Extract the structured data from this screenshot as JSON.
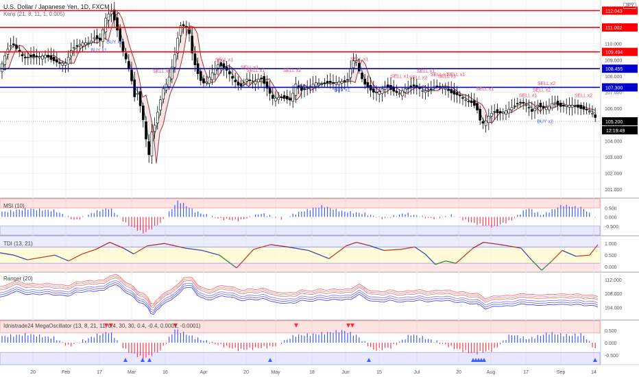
{
  "header": {
    "symbol": "U.S. Dollar / Japanese Yen, 1D, FXCM",
    "study": "Kenji (21, 8, 11, 1, 0.005)",
    "currency": "JPY"
  },
  "indicators": [
    {
      "title": "MSI (10)"
    },
    {
      "title": "TDI (13, 21)"
    },
    {
      "title": "Ranger (20)"
    },
    {
      "title": "Idnistrade24 MegaOscillator (13, 8, 21, 11, 0.4, 30, 30, 0.4, -0.4, 0.0001, -0.0001)"
    }
  ],
  "levels": [
    {
      "price": 112.043,
      "label": "112.043",
      "color": "#ff0000"
    },
    {
      "price": 111.002,
      "label": "111.002",
      "color": "#ff0000"
    },
    {
      "price": 109.494,
      "label": "109.494",
      "color": "#ff0000"
    },
    {
      "price": 108.455,
      "label": "108.455",
      "color": "#0000cc"
    },
    {
      "price": 107.3,
      "label": "107.300",
      "color": "#0000cc"
    }
  ],
  "last_price": {
    "price": 105.2,
    "label": "105.200",
    "time": "12:19:49"
  },
  "chart_data": [
    {
      "type": "candlestick",
      "title": "U.S. Dollar / Japanese Yen, 1D, FXCM",
      "ylim": [
        100.5,
        112.7
      ],
      "y_ticks": [
        "101.000",
        "102.000",
        "103.000",
        "104.000",
        "105.000",
        "106.000",
        "107.000",
        "108.000",
        "109.000",
        "110.000",
        "111.000",
        "112.000"
      ],
      "x_labels": [
        "20",
        "Feb",
        "17",
        "Mar",
        "16",
        "Apr",
        "20",
        "May",
        "18",
        "Jun",
        "15",
        "Jul",
        "20",
        "Aug",
        "17",
        "Sep",
        "14"
      ],
      "price_path": [
        [
          0,
          108.4
        ],
        [
          10,
          109.6
        ],
        [
          18,
          110.0
        ],
        [
          26,
          109.6
        ],
        [
          35,
          109.1
        ],
        [
          44,
          109.2
        ],
        [
          58,
          109.2
        ],
        [
          66,
          109.3
        ],
        [
          75,
          109.0
        ],
        [
          86,
          108.8
        ],
        [
          96,
          108.8
        ],
        [
          105,
          109.7
        ],
        [
          114,
          109.9
        ],
        [
          122,
          110.1
        ],
        [
          130,
          110.0
        ],
        [
          138,
          110.4
        ],
        [
          146,
          110.2
        ],
        [
          155,
          111.7
        ],
        [
          163,
          112.0
        ],
        [
          170,
          111.0
        ],
        [
          178,
          109.7
        ],
        [
          184,
          109.0
        ],
        [
          188,
          108.4
        ],
        [
          192,
          107.7
        ],
        [
          196,
          106.7
        ],
        [
          200,
          107.0
        ],
        [
          206,
          105.9
        ],
        [
          212,
          104.6
        ],
        [
          216,
          102.6
        ],
        [
          220,
          104.4
        ],
        [
          226,
          105.0
        ],
        [
          232,
          106.2
        ],
        [
          238,
          107.2
        ],
        [
          244,
          107.6
        ],
        [
          250,
          108.4
        ],
        [
          256,
          109.5
        ],
        [
          262,
          111.1
        ],
        [
          268,
          111.1
        ],
        [
          275,
          110.9
        ],
        [
          281,
          109.2
        ],
        [
          287,
          108.3
        ],
        [
          293,
          107.7
        ],
        [
          299,
          107.5
        ],
        [
          305,
          107.9
        ],
        [
          311,
          108.3
        ],
        [
          318,
          108.7
        ],
        [
          324,
          108.6
        ],
        [
          332,
          108.3
        ],
        [
          340,
          107.8
        ],
        [
          350,
          107.3
        ],
        [
          360,
          107.8
        ],
        [
          370,
          107.6
        ],
        [
          380,
          107.9
        ],
        [
          390,
          107.2
        ],
        [
          398,
          106.6
        ],
        [
          408,
          106.7
        ],
        [
          416,
          106.6
        ],
        [
          424,
          106.5
        ],
        [
          432,
          107.6
        ],
        [
          440,
          107.1
        ],
        [
          450,
          107.3
        ],
        [
          460,
          107.6
        ],
        [
          470,
          107.5
        ],
        [
          480,
          107.6
        ],
        [
          490,
          107.6
        ],
        [
          500,
          107.7
        ],
        [
          506,
          107.6
        ],
        [
          512,
          108.6
        ],
        [
          518,
          109.2
        ],
        [
          523,
          108.4
        ],
        [
          530,
          107.6
        ],
        [
          536,
          107.3
        ],
        [
          544,
          107.0
        ],
        [
          552,
          107.0
        ],
        [
          562,
          107.4
        ],
        [
          572,
          107.1
        ],
        [
          582,
          106.9
        ],
        [
          590,
          107.2
        ],
        [
          598,
          107.3
        ],
        [
          606,
          107.4
        ],
        [
          616,
          107.1
        ],
        [
          626,
          107.1
        ],
        [
          636,
          107.4
        ],
        [
          648,
          107.3
        ],
        [
          660,
          106.9
        ],
        [
          670,
          106.8
        ],
        [
          680,
          106.5
        ],
        [
          690,
          106.3
        ],
        [
          696,
          105.9
        ],
        [
          702,
          105.0
        ],
        [
          708,
          105.2
        ],
        [
          714,
          105.6
        ],
        [
          720,
          105.8
        ],
        [
          728,
          105.7
        ],
        [
          736,
          105.8
        ],
        [
          744,
          106.0
        ],
        [
          752,
          106.2
        ],
        [
          760,
          106.4
        ],
        [
          768,
          106.2
        ],
        [
          776,
          105.8
        ],
        [
          784,
          106.2
        ],
        [
          792,
          106.0
        ],
        [
          800,
          106.1
        ],
        [
          808,
          106.4
        ],
        [
          816,
          106.1
        ],
        [
          826,
          106.2
        ],
        [
          836,
          106.2
        ],
        [
          846,
          106.0
        ],
        [
          856,
          105.9
        ],
        [
          864,
          105.7
        ],
        [
          872,
          105.2
        ]
      ],
      "signals": [
        {
          "label": "BUY x1",
          "x": 167,
          "price": 110.0,
          "color": "#3d5cff"
        },
        {
          "label": "BUY x1",
          "x": 144,
          "price": 109.5,
          "color": "#3d5cff"
        },
        {
          "label": "SELL x1",
          "x": 236,
          "price": 108.2,
          "color": "#ff4060"
        },
        {
          "label": "SELL x1",
          "x": 327,
          "price": 108.9,
          "color": "#ff4060"
        },
        {
          "label": "SELL x1",
          "x": 364,
          "price": 108.45,
          "color": "#ff4060"
        },
        {
          "label": "SELL x1",
          "x": 373,
          "price": 108.25,
          "color": "#ff4060"
        },
        {
          "label": "SELL x2",
          "x": 426,
          "price": 108.25,
          "color": "#ff4060"
        },
        {
          "label": "BUY x1",
          "x": 499,
          "price": 107.05,
          "color": "#3d5cff"
        },
        {
          "label": "SELL x1",
          "x": 524,
          "price": 108.95,
          "color": "#ff4060"
        },
        {
          "label": "SELL x1",
          "x": 583,
          "price": 107.9,
          "color": "#ff4060"
        },
        {
          "label": "SELL x2",
          "x": 610,
          "price": 107.8,
          "color": "#ff4060"
        },
        {
          "label": "SELL x1",
          "x": 621,
          "price": 108.2,
          "color": "#ff4060"
        },
        {
          "label": "SELL x1",
          "x": 641,
          "price": 108.0,
          "color": "#ff4060"
        },
        {
          "label": "SELL x1",
          "x": 652,
          "price": 107.9,
          "color": "#ff4060"
        },
        {
          "label": "SELL x1",
          "x": 665,
          "price": 108.0,
          "color": "#ff4060"
        },
        {
          "label": "SELL x1",
          "x": 707,
          "price": 107.1,
          "color": "#ff4060"
        },
        {
          "label": "SELL x1",
          "x": 770,
          "price": 106.7,
          "color": "#ff4060"
        },
        {
          "label": "SELL x2",
          "x": 797,
          "price": 107.45,
          "color": "#ff4060"
        },
        {
          "label": "SELL x2",
          "x": 790,
          "price": 107.05,
          "color": "#ff4060"
        },
        {
          "label": "SELL x2",
          "x": 851,
          "price": 106.7,
          "color": "#ff4060"
        },
        {
          "label": "BUY x2",
          "x": 795,
          "price": 105.1,
          "color": "#3d5cff"
        }
      ]
    },
    {
      "type": "bar",
      "title": "MSI (10)",
      "ylim": [
        -1.0,
        1.0
      ],
      "y_ticks": [
        "0.500",
        "0.000",
        "-0.500"
      ],
      "profile": [
        [
          0,
          0.25
        ],
        [
          40,
          0.45
        ],
        [
          80,
          0.35
        ],
        [
          110,
          -0.2
        ],
        [
          140,
          0.3
        ],
        [
          160,
          0.5
        ],
        [
          185,
          -0.4
        ],
        [
          210,
          -0.9
        ],
        [
          235,
          -0.3
        ],
        [
          260,
          0.9
        ],
        [
          285,
          0.3
        ],
        [
          320,
          -0.1
        ],
        [
          350,
          -0.2
        ],
        [
          380,
          0.2
        ],
        [
          410,
          -0.1
        ],
        [
          440,
          0.3
        ],
        [
          470,
          0.6
        ],
        [
          500,
          0.3
        ],
        [
          530,
          0.2
        ],
        [
          560,
          -0.1
        ],
        [
          590,
          0.2
        ],
        [
          630,
          -0.1
        ],
        [
          660,
          0.1
        ],
        [
          690,
          -0.35
        ],
        [
          720,
          -0.55
        ],
        [
          745,
          -0.2
        ],
        [
          770,
          0.5
        ],
        [
          790,
          0.1
        ],
        [
          820,
          0.65
        ],
        [
          850,
          0.5
        ],
        [
          872,
          -0.2
        ]
      ]
    },
    {
      "type": "line",
      "title": "TDI (13, 21)",
      "ylim": [
        -0.2,
        1.3
      ],
      "y_ticks": [
        "1.000",
        "0.500",
        "0.000"
      ],
      "path": [
        [
          0,
          0.6
        ],
        [
          20,
          0.5
        ],
        [
          40,
          0.3
        ],
        [
          60,
          0.4
        ],
        [
          80,
          0.5
        ],
        [
          100,
          0.25
        ],
        [
          120,
          0.55
        ],
        [
          140,
          0.75
        ],
        [
          160,
          1.05
        ],
        [
          180,
          0.8
        ],
        [
          195,
          0.55
        ],
        [
          215,
          0.9
        ],
        [
          240,
          1.0
        ],
        [
          270,
          0.8
        ],
        [
          295,
          0.7
        ],
        [
          320,
          0.5
        ],
        [
          345,
          -0.05
        ],
        [
          370,
          0.75
        ],
        [
          395,
          0.95
        ],
        [
          420,
          0.85
        ],
        [
          450,
          0.7
        ],
        [
          480,
          0.35
        ],
        [
          505,
          0.9
        ],
        [
          520,
          1.05
        ],
        [
          540,
          0.9
        ],
        [
          560,
          0.7
        ],
        [
          585,
          0.75
        ],
        [
          605,
          0.85
        ],
        [
          620,
          0.55
        ],
        [
          635,
          0.1
        ],
        [
          650,
          0.25
        ],
        [
          665,
          0.15
        ],
        [
          690,
          0.8
        ],
        [
          705,
          1.05
        ],
        [
          730,
          0.95
        ],
        [
          760,
          0.8
        ],
        [
          775,
          0.3
        ],
        [
          790,
          -0.15
        ],
        [
          805,
          0.25
        ],
        [
          820,
          0.7
        ],
        [
          840,
          0.45
        ],
        [
          860,
          0.5
        ],
        [
          872,
          0.95
        ]
      ]
    },
    {
      "type": "line",
      "title": "Ranger (20)",
      "ylim": [
        100.5,
        114.0
      ],
      "y_ticks": [
        "112.000",
        "108.000",
        "104.000"
      ]
    },
    {
      "type": "bar",
      "title": "Idnistrade24 MegaOscillator (13, 8, 21, 11, 0.4, 30, 30, 0.4, -0.4, 0.0001, -0.0001)",
      "ylim": [
        -0.9,
        0.9
      ],
      "y_ticks": [
        "0.500",
        "0.000",
        "-0.500"
      ],
      "profile": [
        [
          0,
          0.25
        ],
        [
          40,
          0.35
        ],
        [
          80,
          0.2
        ],
        [
          100,
          -0.15
        ],
        [
          140,
          0.3
        ],
        [
          160,
          0.45
        ],
        [
          185,
          -0.35
        ],
        [
          210,
          -0.65
        ],
        [
          235,
          -0.3
        ],
        [
          255,
          0.55
        ],
        [
          285,
          0.2
        ],
        [
          320,
          -0.1
        ],
        [
          350,
          -0.3
        ],
        [
          380,
          -0.2
        ],
        [
          400,
          -0.15
        ],
        [
          430,
          0.3
        ],
        [
          460,
          0.35
        ],
        [
          500,
          0.5
        ],
        [
          520,
          0.3
        ],
        [
          545,
          -0.3
        ],
        [
          570,
          -0.2
        ],
        [
          600,
          0.35
        ],
        [
          630,
          0.1
        ],
        [
          660,
          -0.2
        ],
        [
          690,
          -0.45
        ],
        [
          720,
          -0.3
        ],
        [
          745,
          0.35
        ],
        [
          770,
          0.15
        ],
        [
          800,
          0.4
        ],
        [
          830,
          0.3
        ],
        [
          850,
          0.35
        ],
        [
          872,
          -0.4
        ]
      ],
      "markers_top": [
        155,
        162,
        256,
        432,
        508,
        514
      ],
      "markers_bottom": [
        183,
        208,
        218,
        394,
        538,
        690,
        694,
        698,
        702,
        706,
        868
      ]
    }
  ],
  "x_axis": [
    {
      "label": "20",
      "x": 48
    },
    {
      "label": "Feb",
      "x": 96
    },
    {
      "label": "17",
      "x": 145
    },
    {
      "label": "Mar",
      "x": 192
    },
    {
      "label": "16",
      "x": 241
    },
    {
      "label": "Apr",
      "x": 297
    },
    {
      "label": "20",
      "x": 359
    },
    {
      "label": "May",
      "x": 402
    },
    {
      "label": "18",
      "x": 455
    },
    {
      "label": "Jun",
      "x": 504
    },
    {
      "label": "15",
      "x": 553
    },
    {
      "label": "Jul",
      "x": 608
    },
    {
      "label": "20",
      "x": 669
    },
    {
      "label": "Aug",
      "x": 716
    },
    {
      "label": "17",
      "x": 767
    },
    {
      "label": "Sep",
      "x": 818
    },
    {
      "label": "14",
      "x": 866
    }
  ]
}
